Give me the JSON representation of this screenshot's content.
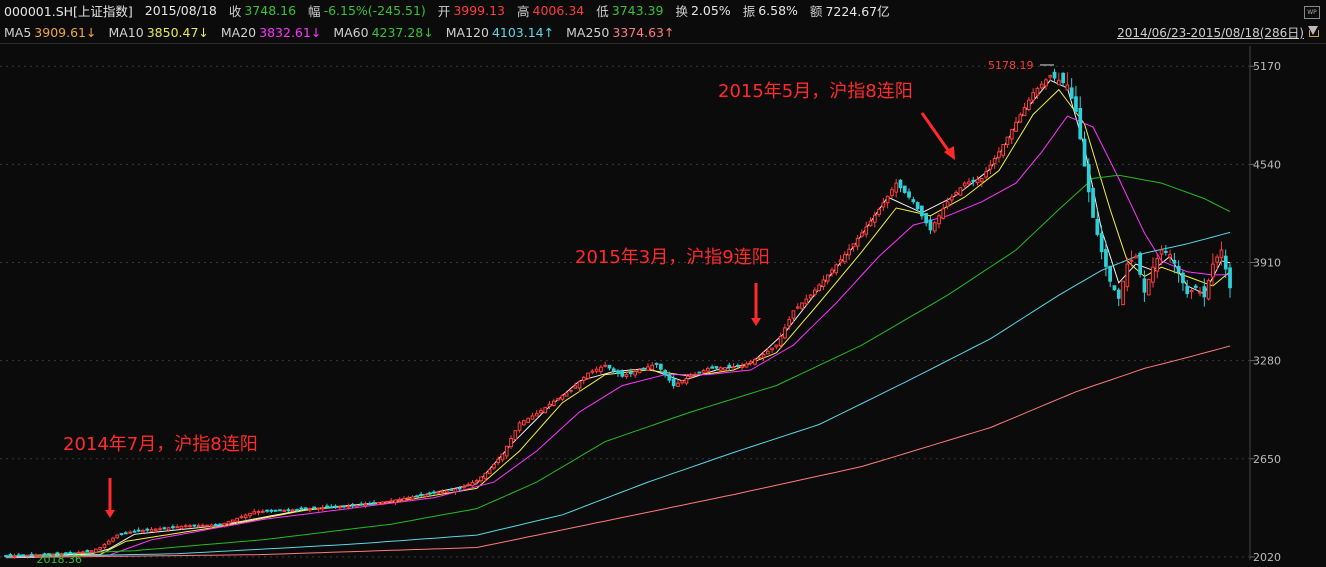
{
  "header": {
    "symbol": "000001.SH[上证指数]",
    "date": "2015/08/18",
    "close_label": "收",
    "close": "3748.16",
    "change_label": "幅",
    "change": "-6.15%(-245.51)",
    "open_label": "开",
    "open": "3999.13",
    "high_label": "高",
    "high": "4006.34",
    "low_label": "低",
    "low": "3743.39",
    "turnover_label": "换",
    "turnover": "2.05%",
    "amplitude_label": "振",
    "amplitude": "6.58%",
    "amount_label": "额",
    "amount": "7224.67亿"
  },
  "ma_header": {
    "ma5_label": "MA5",
    "ma5": "3909.61↓",
    "ma10_label": "MA10",
    "ma10": "3850.47↓",
    "ma20_label": "MA20",
    "ma20": "3832.61↓",
    "ma60_label": "MA60",
    "ma60": "4237.28↓",
    "ma120_label": "MA120",
    "ma120": "4103.14↑",
    "ma250_label": "MA250",
    "ma250": "3374.63↑",
    "range": "2014/06/23-2015/08/18(286日)",
    "wp_label": "WP"
  },
  "colors": {
    "background": "#0b0b0b",
    "up": "#ff3b3b",
    "down": "#2fd0d8",
    "ma5": "#f0f0f0",
    "ma10": "#f2f23a",
    "ma20": "#ff33ff",
    "ma60": "#22bb22",
    "ma120": "#58d7e6",
    "ma250": "#ff7a7a",
    "annotation": "#ff2a2a",
    "grid": "#3a3a3a"
  },
  "chart_data": {
    "type": "candlestick",
    "title": "000001.SH[上证指数]",
    "x_start": "2014/06/23",
    "x_end": "2015/08/18",
    "trading_days": 286,
    "y_ticks": [
      2020,
      2650,
      3280,
      3910,
      4540,
      5170
    ],
    "ylim": [
      2000,
      5300
    ],
    "grid": true,
    "high_marker": {
      "label": "5178.19",
      "value": 5178.19
    },
    "low_marker": {
      "label": "2018.36",
      "value": 2018.36
    },
    "annotations": [
      {
        "text": "2014年7月，沪指8连阳",
        "day": 22
      },
      {
        "text": "2015年3月，沪指9连阳",
        "day": 177
      },
      {
        "text": "2015年5月，沪指8连阳",
        "day": 224
      }
    ],
    "close_path": [
      [
        0,
        2025
      ],
      [
        6,
        2030
      ],
      [
        12,
        2038
      ],
      [
        16,
        2045
      ],
      [
        20,
        2060
      ],
      [
        22,
        2080
      ],
      [
        26,
        2160
      ],
      [
        30,
        2185
      ],
      [
        36,
        2200
      ],
      [
        42,
        2220
      ],
      [
        50,
        2225
      ],
      [
        58,
        2310
      ],
      [
        66,
        2320
      ],
      [
        74,
        2335
      ],
      [
        82,
        2350
      ],
      [
        90,
        2380
      ],
      [
        98,
        2420
      ],
      [
        106,
        2460
      ],
      [
        110,
        2510
      ],
      [
        113,
        2580
      ],
      [
        116,
        2680
      ],
      [
        120,
        2880
      ],
      [
        124,
        2940
      ],
      [
        128,
        3020
      ],
      [
        132,
        3090
      ],
      [
        136,
        3200
      ],
      [
        140,
        3250
      ],
      [
        144,
        3180
      ],
      [
        148,
        3220
      ],
      [
        152,
        3260
      ],
      [
        156,
        3120
      ],
      [
        160,
        3180
      ],
      [
        164,
        3230
      ],
      [
        168,
        3235
      ],
      [
        172,
        3245
      ],
      [
        176,
        3300
      ],
      [
        180,
        3380
      ],
      [
        184,
        3600
      ],
      [
        188,
        3700
      ],
      [
        192,
        3830
      ],
      [
        196,
        3960
      ],
      [
        200,
        4100
      ],
      [
        204,
        4250
      ],
      [
        208,
        4420
      ],
      [
        212,
        4300
      ],
      [
        216,
        4120
      ],
      [
        220,
        4300
      ],
      [
        224,
        4420
      ],
      [
        228,
        4450
      ],
      [
        232,
        4620
      ],
      [
        236,
        4810
      ],
      [
        240,
        5000
      ],
      [
        244,
        5110
      ],
      [
        248,
        5050
      ],
      [
        250,
        4880
      ],
      [
        252,
        4530
      ],
      [
        254,
        4200
      ],
      [
        256,
        3980
      ],
      [
        258,
        3790
      ],
      [
        260,
        3680
      ],
      [
        262,
        3900
      ],
      [
        264,
        3950
      ],
      [
        266,
        3720
      ],
      [
        268,
        3880
      ],
      [
        270,
        3990
      ],
      [
        272,
        3960
      ],
      [
        274,
        3850
      ],
      [
        276,
        3710
      ],
      [
        278,
        3750
      ],
      [
        280,
        3690
      ],
      [
        282,
        3900
      ],
      [
        284,
        3990
      ],
      [
        286,
        3748
      ]
    ],
    "ma_series": [
      {
        "name": "MA5",
        "value": "3909.61↓",
        "points": [
          [
            0,
            2025
          ],
          [
            20,
            2040
          ],
          [
            24,
            2070
          ],
          [
            30,
            2165
          ],
          [
            50,
            2222
          ],
          [
            70,
            2325
          ],
          [
            90,
            2375
          ],
          [
            110,
            2490
          ],
          [
            118,
            2740
          ],
          [
            126,
            2960
          ],
          [
            134,
            3150
          ],
          [
            142,
            3210
          ],
          [
            150,
            3230
          ],
          [
            158,
            3150
          ],
          [
            166,
            3220
          ],
          [
            174,
            3260
          ],
          [
            182,
            3460
          ],
          [
            190,
            3740
          ],
          [
            198,
            4010
          ],
          [
            206,
            4330
          ],
          [
            214,
            4230
          ],
          [
            222,
            4340
          ],
          [
            230,
            4510
          ],
          [
            238,
            4880
          ],
          [
            244,
            5080
          ],
          [
            248,
            5030
          ],
          [
            252,
            4650
          ],
          [
            256,
            4120
          ],
          [
            260,
            3780
          ],
          [
            264,
            3900
          ],
          [
            268,
            3860
          ],
          [
            272,
            3950
          ],
          [
            276,
            3760
          ],
          [
            280,
            3710
          ],
          [
            284,
            3920
          ],
          [
            286,
            3909
          ]
        ]
      },
      {
        "name": "MA10",
        "value": "3850.47↓",
        "points": [
          [
            0,
            2025
          ],
          [
            22,
            2035
          ],
          [
            28,
            2120
          ],
          [
            50,
            2215
          ],
          [
            70,
            2320
          ],
          [
            90,
            2370
          ],
          [
            110,
            2460
          ],
          [
            120,
            2700
          ],
          [
            130,
            3010
          ],
          [
            140,
            3190
          ],
          [
            150,
            3220
          ],
          [
            160,
            3180
          ],
          [
            170,
            3220
          ],
          [
            180,
            3330
          ],
          [
            190,
            3650
          ],
          [
            200,
            3980
          ],
          [
            208,
            4260
          ],
          [
            216,
            4210
          ],
          [
            224,
            4330
          ],
          [
            232,
            4500
          ],
          [
            240,
            4860
          ],
          [
            246,
            5020
          ],
          [
            252,
            4800
          ],
          [
            258,
            4250
          ],
          [
            262,
            3920
          ],
          [
            266,
            3820
          ],
          [
            270,
            3880
          ],
          [
            276,
            3820
          ],
          [
            282,
            3760
          ],
          [
            286,
            3850
          ]
        ]
      },
      {
        "name": "MA20",
        "value": "3832.61↓",
        "points": [
          [
            0,
            2025
          ],
          [
            24,
            2030
          ],
          [
            34,
            2130
          ],
          [
            60,
            2260
          ],
          [
            80,
            2330
          ],
          [
            100,
            2400
          ],
          [
            114,
            2500
          ],
          [
            124,
            2700
          ],
          [
            134,
            2950
          ],
          [
            144,
            3120
          ],
          [
            154,
            3190
          ],
          [
            164,
            3190
          ],
          [
            174,
            3220
          ],
          [
            184,
            3380
          ],
          [
            194,
            3650
          ],
          [
            204,
            3950
          ],
          [
            212,
            4150
          ],
          [
            220,
            4210
          ],
          [
            228,
            4300
          ],
          [
            236,
            4420
          ],
          [
            242,
            4620
          ],
          [
            248,
            4850
          ],
          [
            254,
            4780
          ],
          [
            260,
            4450
          ],
          [
            266,
            4100
          ],
          [
            270,
            3920
          ],
          [
            276,
            3850
          ],
          [
            282,
            3830
          ],
          [
            286,
            3832
          ]
        ]
      },
      {
        "name": "MA60",
        "value": "4237.28↓",
        "points": [
          [
            0,
            2025
          ],
          [
            30,
            2060
          ],
          [
            60,
            2130
          ],
          [
            90,
            2230
          ],
          [
            110,
            2330
          ],
          [
            124,
            2500
          ],
          [
            140,
            2760
          ],
          [
            160,
            2950
          ],
          [
            180,
            3120
          ],
          [
            200,
            3380
          ],
          [
            220,
            3700
          ],
          [
            236,
            3990
          ],
          [
            246,
            4250
          ],
          [
            254,
            4450
          ],
          [
            260,
            4470
          ],
          [
            270,
            4420
          ],
          [
            280,
            4320
          ],
          [
            286,
            4237
          ]
        ]
      },
      {
        "name": "MA120",
        "value": "4103.14↑",
        "points": [
          [
            0,
            2020
          ],
          [
            40,
            2040
          ],
          [
            80,
            2100
          ],
          [
            110,
            2160
          ],
          [
            130,
            2290
          ],
          [
            150,
            2500
          ],
          [
            170,
            2690
          ],
          [
            190,
            2870
          ],
          [
            210,
            3140
          ],
          [
            230,
            3420
          ],
          [
            246,
            3700
          ],
          [
            256,
            3860
          ],
          [
            266,
            3970
          ],
          [
            276,
            4030
          ],
          [
            286,
            4103
          ]
        ]
      },
      {
        "name": "MA250",
        "value": "3374.63↑",
        "points": [
          [
            0,
            2015
          ],
          [
            60,
            2035
          ],
          [
            110,
            2080
          ],
          [
            140,
            2250
          ],
          [
            170,
            2420
          ],
          [
            200,
            2600
          ],
          [
            230,
            2850
          ],
          [
            250,
            3080
          ],
          [
            266,
            3230
          ],
          [
            276,
            3300
          ],
          [
            286,
            3374
          ]
        ]
      }
    ]
  }
}
